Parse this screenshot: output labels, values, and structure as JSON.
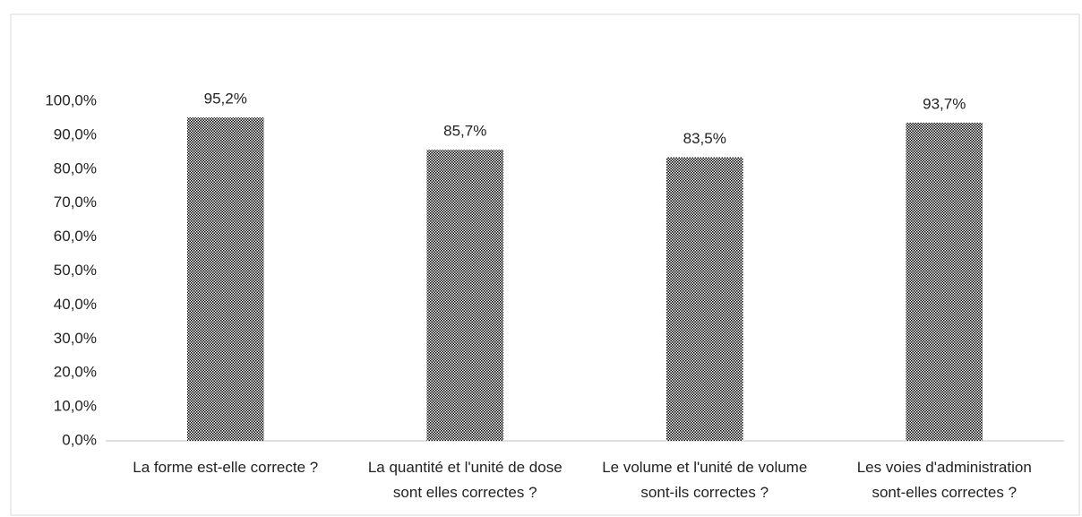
{
  "chart_data": {
    "type": "bar",
    "categories": [
      "La forme est-elle correcte ?",
      "La quantité et l'unité de dose sont elles correctes ?",
      "Le volume et l'unité de volume sont-ils correctes ?",
      "Les voies d'administration sont-elles correctes ?"
    ],
    "values": [
      95.2,
      85.7,
      83.5,
      93.7
    ],
    "value_labels": [
      "95,2%",
      "85,7%",
      "83,5%",
      "93,7%"
    ],
    "color": "#000000",
    "ylim": [
      0,
      100
    ],
    "yticks": [
      {
        "value": 0,
        "label": "0,0%"
      },
      {
        "value": 10,
        "label": "10,0%"
      },
      {
        "value": 20,
        "label": "20,0%"
      },
      {
        "value": 30,
        "label": "30,0%"
      },
      {
        "value": 40,
        "label": "40,0%"
      },
      {
        "value": 50,
        "label": "50,0%"
      },
      {
        "value": 60,
        "label": "60,0%"
      },
      {
        "value": 70,
        "label": "70,0%"
      },
      {
        "value": 80,
        "label": "80,0%"
      },
      {
        "value": 90,
        "label": "90,0%"
      },
      {
        "value": 100,
        "label": "100,0%"
      }
    ],
    "grid": false
  }
}
